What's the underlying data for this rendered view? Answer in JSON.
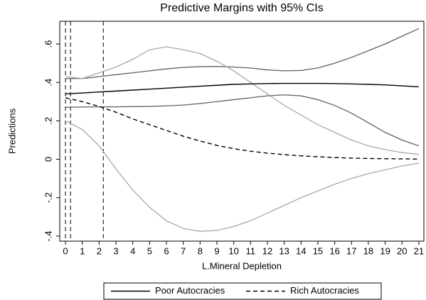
{
  "chart_data": {
    "type": "line",
    "title": "Predictive Margins with 95% CIs",
    "xlabel": "L.Mineral Depletion",
    "ylabel": "Predictions",
    "x": [
      0,
      1,
      2,
      3,
      4,
      5,
      6,
      7,
      8,
      9,
      10,
      11,
      12,
      13,
      14,
      15,
      16,
      17,
      18,
      19,
      20,
      21
    ],
    "series": [
      {
        "name": "Poor Autocracies",
        "color": "#000000",
        "dash": "none",
        "ci_color": "#606060",
        "values": [
          0.34,
          0.345,
          0.35,
          0.355,
          0.36,
          0.365,
          0.37,
          0.375,
          0.38,
          0.385,
          0.39,
          0.392,
          0.394,
          0.395,
          0.395,
          0.395,
          0.394,
          0.392,
          0.39,
          0.387,
          0.382,
          0.377
        ],
        "ci_upper": [
          0.42,
          0.42,
          0.43,
          0.44,
          0.45,
          0.46,
          0.47,
          0.478,
          0.482,
          0.483,
          0.48,
          0.475,
          0.465,
          0.46,
          0.462,
          0.475,
          0.5,
          0.53,
          0.565,
          0.6,
          0.64,
          0.68
        ],
        "ci_lower": [
          0.27,
          0.272,
          0.273,
          0.273,
          0.274,
          0.275,
          0.278,
          0.282,
          0.29,
          0.3,
          0.31,
          0.32,
          0.33,
          0.335,
          0.33,
          0.31,
          0.28,
          0.24,
          0.19,
          0.14,
          0.1,
          0.07
        ]
      },
      {
        "name": "Rich Autocracies",
        "color": "#000000",
        "dash": "6,4",
        "ci_color": "#a8a8a8",
        "values": [
          0.32,
          0.3,
          0.275,
          0.245,
          0.21,
          0.18,
          0.15,
          0.12,
          0.095,
          0.072,
          0.055,
          0.042,
          0.032,
          0.024,
          0.018,
          0.013,
          0.009,
          0.006,
          0.004,
          0.003,
          0.002,
          0.001
        ],
        "ci_upper": [
          0.43,
          0.42,
          0.45,
          0.48,
          0.52,
          0.57,
          0.585,
          0.57,
          0.55,
          0.51,
          0.46,
          0.4,
          0.34,
          0.28,
          0.23,
          0.18,
          0.14,
          0.1,
          0.07,
          0.05,
          0.035,
          0.025
        ],
        "ci_lower": [
          0.2,
          0.155,
          0.07,
          -0.05,
          -0.16,
          -0.25,
          -0.32,
          -0.36,
          -0.375,
          -0.37,
          -0.35,
          -0.32,
          -0.28,
          -0.24,
          -0.2,
          -0.165,
          -0.13,
          -0.1,
          -0.075,
          -0.055,
          -0.035,
          -0.02
        ]
      }
    ],
    "xlines": [
      0,
      0.3,
      2.25
    ],
    "xlim": [
      -0.34,
      21.3
    ],
    "ylim": [
      -0.426,
      0.718
    ],
    "xticks": [
      0,
      1,
      2,
      3,
      4,
      5,
      6,
      7,
      8,
      9,
      10,
      11,
      12,
      13,
      14,
      15,
      16,
      17,
      18,
      19,
      20,
      21
    ],
    "yticks": [
      {
        "value": -0.4,
        "label": "-.4"
      },
      {
        "value": -0.2,
        "label": "-.2"
      },
      0,
      {
        "value": 0.2,
        "label": ".2"
      },
      {
        "value": 0.4,
        "label": ".4"
      },
      {
        "value": 0.6,
        "label": ".6"
      }
    ],
    "legend": "bottom"
  }
}
